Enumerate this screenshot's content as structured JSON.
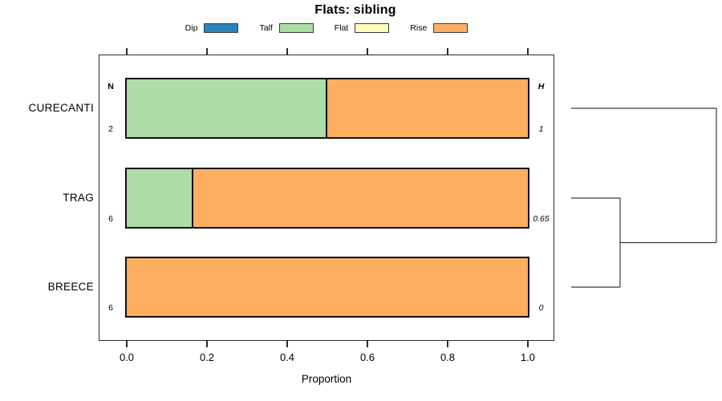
{
  "chart": {
    "title": "Flats: sibling",
    "xlabel": "Proportion"
  },
  "columns": {
    "n_header": "N",
    "h_header": "H"
  },
  "chart_data": {
    "type": "bar",
    "orientation": "horizontal",
    "stacked": true,
    "title": "Flats: sibling",
    "xlabel": "Proportion",
    "xlim": [
      0,
      1
    ],
    "grid": false,
    "legend_position": "top",
    "x_ticks": [
      {
        "value": 0.0,
        "label": "0.0"
      },
      {
        "value": 0.2,
        "label": "0.2"
      },
      {
        "value": 0.4,
        "label": "0.4"
      },
      {
        "value": 0.6,
        "label": "0.6"
      },
      {
        "value": 0.8,
        "label": "0.8"
      },
      {
        "value": 1.0,
        "label": "1.0"
      }
    ],
    "categories": [
      "CURECANTI",
      "TRAG",
      "BREECE"
    ],
    "rows": [
      {
        "label": "CURECANTI",
        "n": "2",
        "h": "1"
      },
      {
        "label": "TRAG",
        "n": "6",
        "h": "0.65"
      },
      {
        "label": "BREECE",
        "n": "6",
        "h": "0"
      }
    ],
    "legend": [
      {
        "label": "Dip",
        "color": "#2B83BA"
      },
      {
        "label": "Talf",
        "color": "#ABDDA4"
      },
      {
        "label": "Flat",
        "color": "#FFFFBF"
      },
      {
        "label": "Rise",
        "color": "#FDAE61"
      }
    ],
    "series": [
      {
        "name": "Dip",
        "color": "#2B83BA",
        "values": [
          0,
          0,
          0
        ]
      },
      {
        "name": "Talf",
        "color": "#ABDDA4",
        "values": [
          0.5,
          0.1667,
          0
        ]
      },
      {
        "name": "Flat",
        "color": "#FFFFBF",
        "values": [
          0,
          0,
          0
        ]
      },
      {
        "name": "Rise",
        "color": "#FDAE61",
        "values": [
          0.5,
          0.8333,
          1.0
        ]
      }
    ],
    "dendrogram": {
      "leaf_order": [
        "CURECANTI",
        "TRAG",
        "BREECE"
      ],
      "merges": [
        {
          "members": [
            "TRAG",
            "BREECE"
          ],
          "height_frac": 0.337
        },
        {
          "members": [
            "TRAG+BREECE",
            "CURECANTI"
          ],
          "height_frac": 1.0
        }
      ],
      "segments": [
        {
          "x1": 0,
          "y1": 0,
          "x2": 1,
          "y2": 0
        },
        {
          "x1": 0,
          "y1": 1,
          "x2": 0.337,
          "y2": 1
        },
        {
          "x1": 0,
          "y1": 2,
          "x2": 0.337,
          "y2": 2
        },
        {
          "x1": 0.337,
          "y1": 1,
          "x2": 0.337,
          "y2": 2
        },
        {
          "x1": 0.337,
          "y1": 1.5,
          "x2": 1,
          "y2": 1.5
        },
        {
          "x1": 1,
          "y1": 0,
          "x2": 1,
          "y2": 1.5
        }
      ]
    }
  }
}
